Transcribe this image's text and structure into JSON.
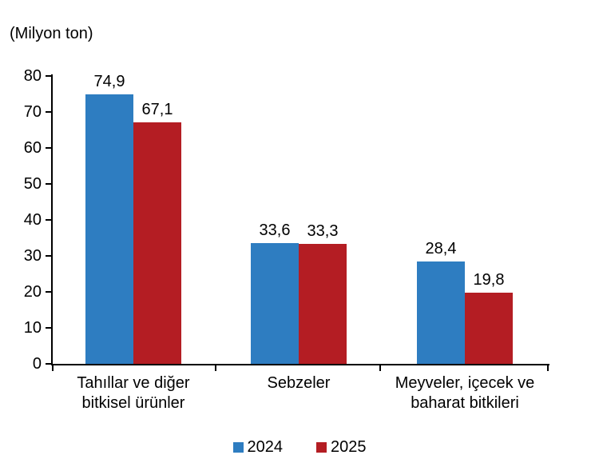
{
  "chart_data": {
    "type": "bar",
    "unit_label": "(Milyon ton)",
    "categories": [
      "Tahıllar ve diğer bitkisel ürünler",
      "Sebzeler",
      "Meyveler, içecek ve baharat bitkileri"
    ],
    "category_label_lines": [
      [
        "Tahıllar ve diğer",
        "bitkisel ürünler"
      ],
      [
        "Sebzeler"
      ],
      [
        "Meyveler, içecek ve",
        "baharat bitkileri"
      ]
    ],
    "series": [
      {
        "name": "2024",
        "color": "#2E7DC1",
        "values": [
          74.9,
          33.6,
          28.4
        ],
        "value_labels": [
          "74,9",
          "33,6",
          "28,4"
        ]
      },
      {
        "name": "2025",
        "color": "#B41D23",
        "values": [
          67.1,
          33.3,
          19.8
        ],
        "value_labels": [
          "67,1",
          "33,3",
          "19,8"
        ]
      }
    ],
    "ylim": [
      0,
      80
    ],
    "ytick_step": 10,
    "ytick_labels": [
      "0",
      "10",
      "20",
      "30",
      "40",
      "50",
      "60",
      "70",
      "80"
    ],
    "grid": false,
    "legend_position": "bottom",
    "axis_color": "#000000",
    "text_color": "#000000",
    "decimal_separator": ","
  }
}
